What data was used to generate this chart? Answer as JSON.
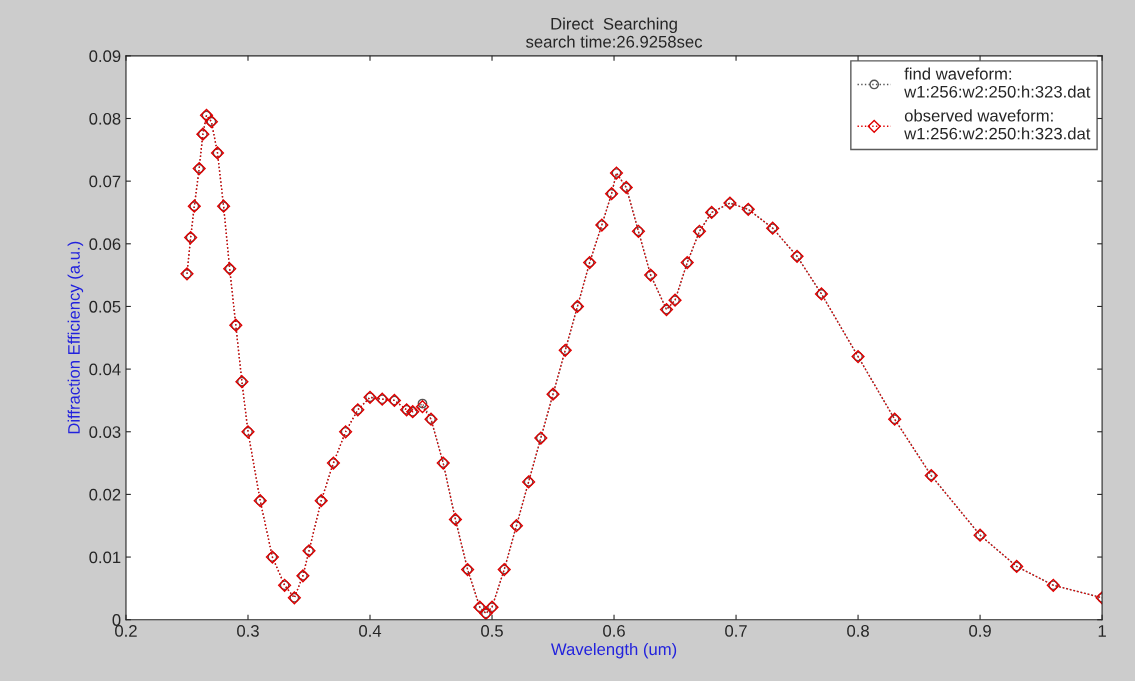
{
  "chart_data": {
    "type": "line",
    "title": "Direct  Searching",
    "subtitle": "search time:26.9258sec",
    "xlabel": "Wavelength (um)",
    "ylabel": "Diffraction Efficiency (a.u.)",
    "x": [
      0.25,
      0.253,
      0.256,
      0.26,
      0.263,
      0.266,
      0.27,
      0.275,
      0.28,
      0.285,
      0.29,
      0.295,
      0.3,
      0.31,
      0.32,
      0.33,
      0.338,
      0.345,
      0.35,
      0.36,
      0.37,
      0.38,
      0.39,
      0.4,
      0.41,
      0.42,
      0.43,
      0.435,
      0.443,
      0.45,
      0.46,
      0.47,
      0.48,
      0.49,
      0.495,
      0.5,
      0.51,
      0.52,
      0.53,
      0.54,
      0.55,
      0.56,
      0.57,
      0.58,
      0.59,
      0.598,
      0.602,
      0.61,
      0.62,
      0.63,
      0.643,
      0.65,
      0.66,
      0.67,
      0.68,
      0.695,
      0.71,
      0.73,
      0.75,
      0.77,
      0.8,
      0.83,
      0.86,
      0.9,
      0.93,
      0.96,
      1.0
    ],
    "series": [
      {
        "name": "find waveform:\nw1:256:w2:250:h:323.dat",
        "color": "#555555",
        "marker": "circle",
        "line_style": "dotted",
        "values": [
          0.0552,
          0.061,
          0.066,
          0.072,
          0.0775,
          0.0805,
          0.0795,
          0.0745,
          0.066,
          0.056,
          0.047,
          0.038,
          0.03,
          0.019,
          0.01,
          0.0055,
          0.0035,
          0.007,
          0.011,
          0.019,
          0.025,
          0.03,
          0.0335,
          0.0355,
          0.0352,
          0.035,
          0.0335,
          0.0332,
          0.0345,
          0.032,
          0.025,
          0.016,
          0.008,
          0.002,
          0.001,
          0.002,
          0.008,
          0.015,
          0.022,
          0.029,
          0.036,
          0.043,
          0.05,
          0.057,
          0.063,
          0.068,
          0.0713,
          0.069,
          0.062,
          0.055,
          0.0495,
          0.051,
          0.057,
          0.062,
          0.065,
          0.0665,
          0.0655,
          0.0625,
          0.058,
          0.052,
          0.042,
          0.032,
          0.023,
          0.0135,
          0.0085,
          0.0055,
          0.0035
        ]
      },
      {
        "name": "observed waveform:\nw1:256:w2:250:h:323.dat",
        "color": "#e00000",
        "marker": "diamond",
        "line_style": "dotted",
        "values": [
          0.0552,
          0.061,
          0.066,
          0.072,
          0.0775,
          0.0805,
          0.0795,
          0.0745,
          0.066,
          0.056,
          0.047,
          0.038,
          0.03,
          0.019,
          0.01,
          0.0055,
          0.0035,
          0.007,
          0.011,
          0.019,
          0.025,
          0.03,
          0.0335,
          0.0355,
          0.0352,
          0.035,
          0.0335,
          0.0332,
          0.034,
          0.032,
          0.025,
          0.016,
          0.008,
          0.002,
          0.001,
          0.002,
          0.008,
          0.015,
          0.022,
          0.029,
          0.036,
          0.043,
          0.05,
          0.057,
          0.063,
          0.068,
          0.0713,
          0.069,
          0.062,
          0.055,
          0.0495,
          0.051,
          0.057,
          0.062,
          0.065,
          0.0665,
          0.0655,
          0.0625,
          0.058,
          0.052,
          0.042,
          0.032,
          0.023,
          0.0135,
          0.0085,
          0.0055,
          0.0035
        ]
      }
    ],
    "xlim": [
      0.2,
      1.0
    ],
    "xticks": [
      0.2,
      0.3,
      0.4,
      0.5,
      0.6,
      0.7,
      0.8,
      0.9,
      1
    ],
    "ylim": [
      0,
      0.09
    ],
    "yticks": [
      0,
      0.01,
      0.02,
      0.03,
      0.04,
      0.05,
      0.06,
      0.07,
      0.08,
      0.09
    ],
    "grid": false,
    "legend": "top right"
  }
}
